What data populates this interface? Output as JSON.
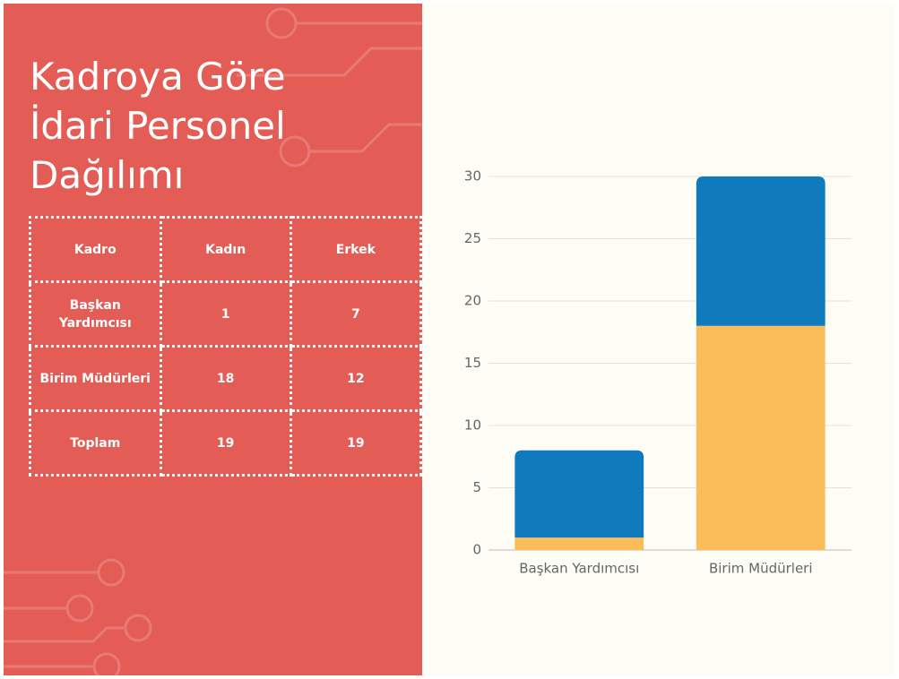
{
  "title_lines": [
    "Kadroya Göre",
    "İdari Personel",
    "Dağılımı"
  ],
  "table": {
    "header": [
      "Kadro",
      "Kadın",
      "Erkek"
    ],
    "rows": [
      [
        "Başkan Yardımcısı",
        1,
        7
      ],
      [
        "Birim Müdürleri",
        18,
        12
      ],
      [
        "Toplam",
        19,
        19
      ]
    ]
  },
  "chart_data": {
    "type": "bar",
    "stacked": true,
    "categories": [
      "Başkan Yardımcısı",
      "Birim Müdürleri"
    ],
    "series": [
      {
        "color": "#fbbc5a",
        "values": [
          1,
          18
        ]
      },
      {
        "color": "#0f7bbd",
        "values": [
          7,
          12
        ]
      }
    ],
    "ylim": [
      0,
      30
    ],
    "yticks": [
      0,
      5,
      10,
      15,
      20,
      25,
      30
    ],
    "grid": true
  }
}
